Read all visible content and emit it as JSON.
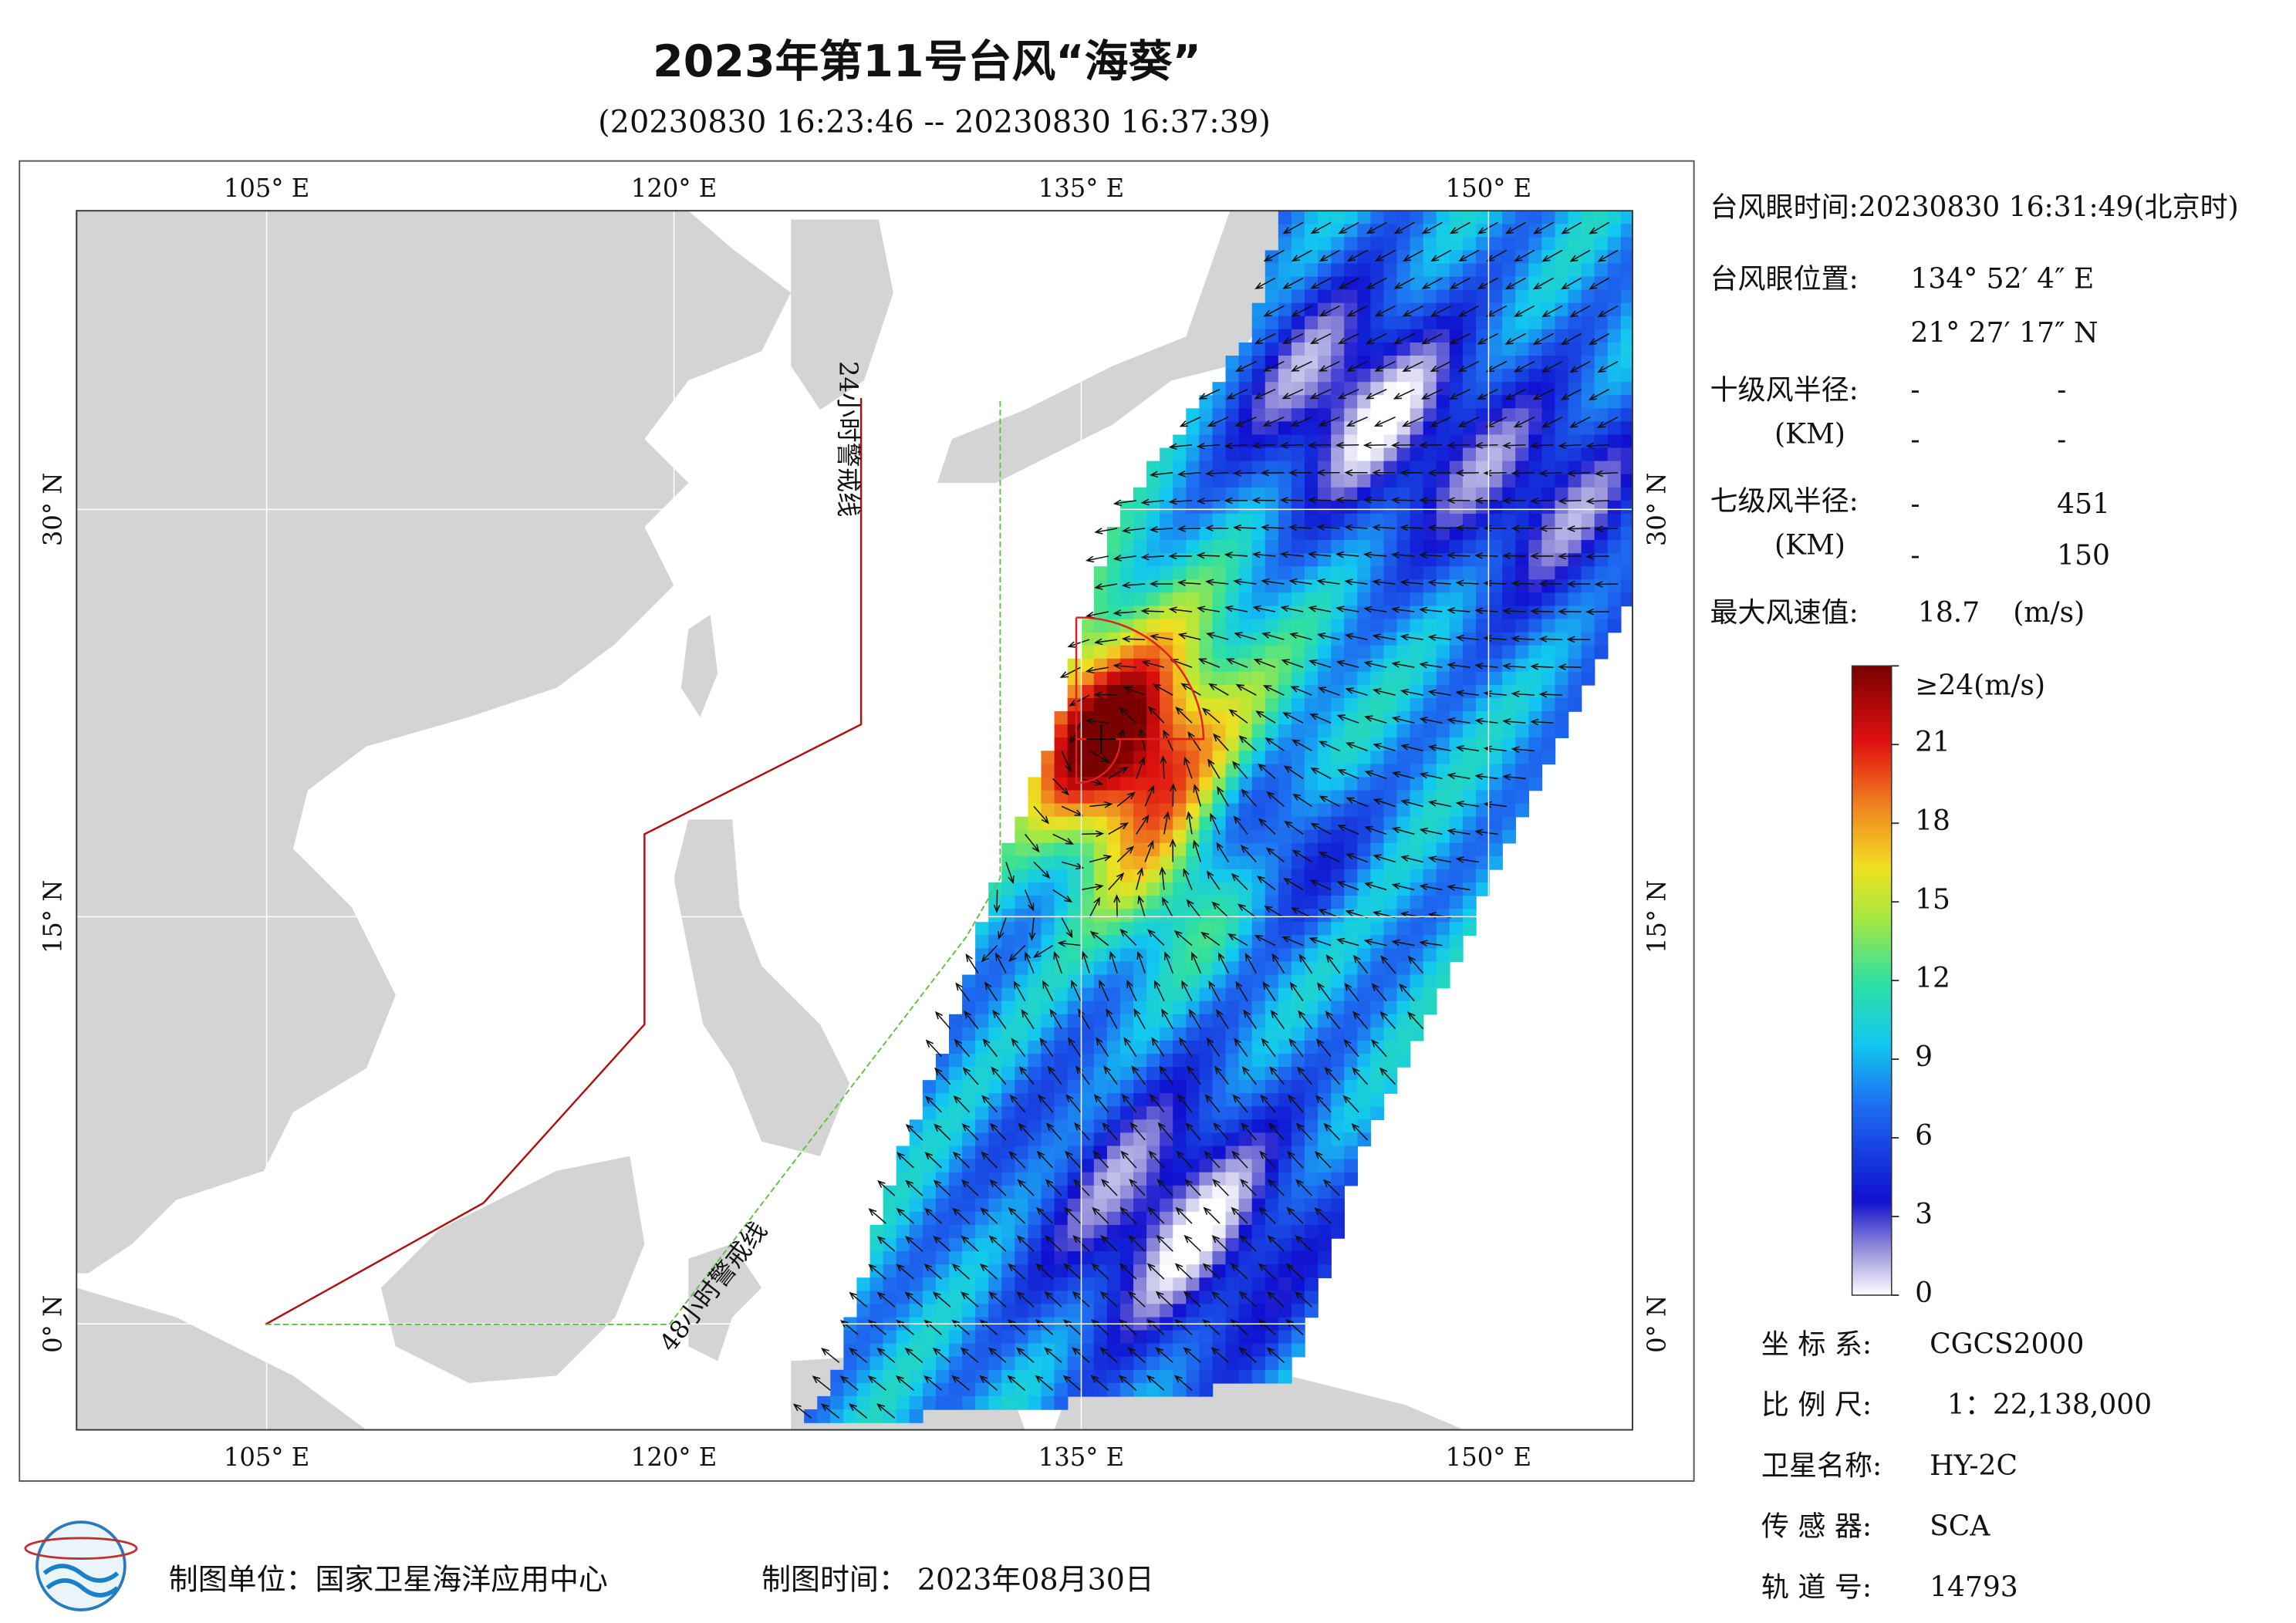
{
  "header": {
    "title": "2023年第11号台风“海葵”",
    "subtitle": "(20230830 16:23:46 -- 20230830 16:37:39)"
  },
  "map": {
    "xlim": [
      98,
      155.3
    ],
    "ylim": [
      -3.9,
      41
    ],
    "lon_ticks": [
      {
        "value": 105,
        "label": "105° E"
      },
      {
        "value": 120,
        "label": "120° E"
      },
      {
        "value": 135,
        "label": "135° E"
      },
      {
        "value": 150,
        "label": "150° E"
      }
    ],
    "lat_ticks": [
      {
        "value": 0,
        "label": "0° N"
      },
      {
        "value": 15,
        "label": "15° N"
      },
      {
        "value": 30,
        "label": "30° N"
      }
    ],
    "line_24h": "24小时警戒线",
    "line_48h": "48小时警戒线"
  },
  "info": {
    "eye_time": "台风眼时间:20230830 16:31:49(北京时)",
    "eye_pos_label": "台风眼位置:",
    "eye_lon": "134° 52′ 4″ E",
    "eye_lat": "21° 27′ 17″ N",
    "r10_label": "十级风半径:",
    "r10_unit": "(KM)",
    "r10": [
      "-",
      "-",
      "-",
      "-"
    ],
    "r7_label": "七级风半径:",
    "r7_unit": "(KM)",
    "r7": [
      "-",
      451,
      "-",
      150
    ],
    "max_label": "最大风速值:",
    "max_value": 18.7,
    "max_unit": "(m/s)"
  },
  "colorbar": {
    "range": [
      0,
      24
    ],
    "ticks": [
      0,
      3,
      6,
      9,
      12,
      15,
      18,
      21,
      {
        "value": 24,
        "label": "≥24(m/s)"
      }
    ]
  },
  "meta": [
    {
      "label": "坐 标 系:",
      "value": "CGCS2000"
    },
    {
      "label": "比 例 尺:",
      "value": "1：22,138,000"
    },
    {
      "label": "卫星名称:",
      "value": "HY-2C"
    },
    {
      "label": "传 感 器:",
      "value": "SCA"
    },
    {
      "label": "轨 道 号:",
      "value": 14793
    }
  ],
  "footer": {
    "unit": "制图单位：国家卫星海洋应用中心",
    "date": "制图时间：  2023年08月30日"
  }
}
